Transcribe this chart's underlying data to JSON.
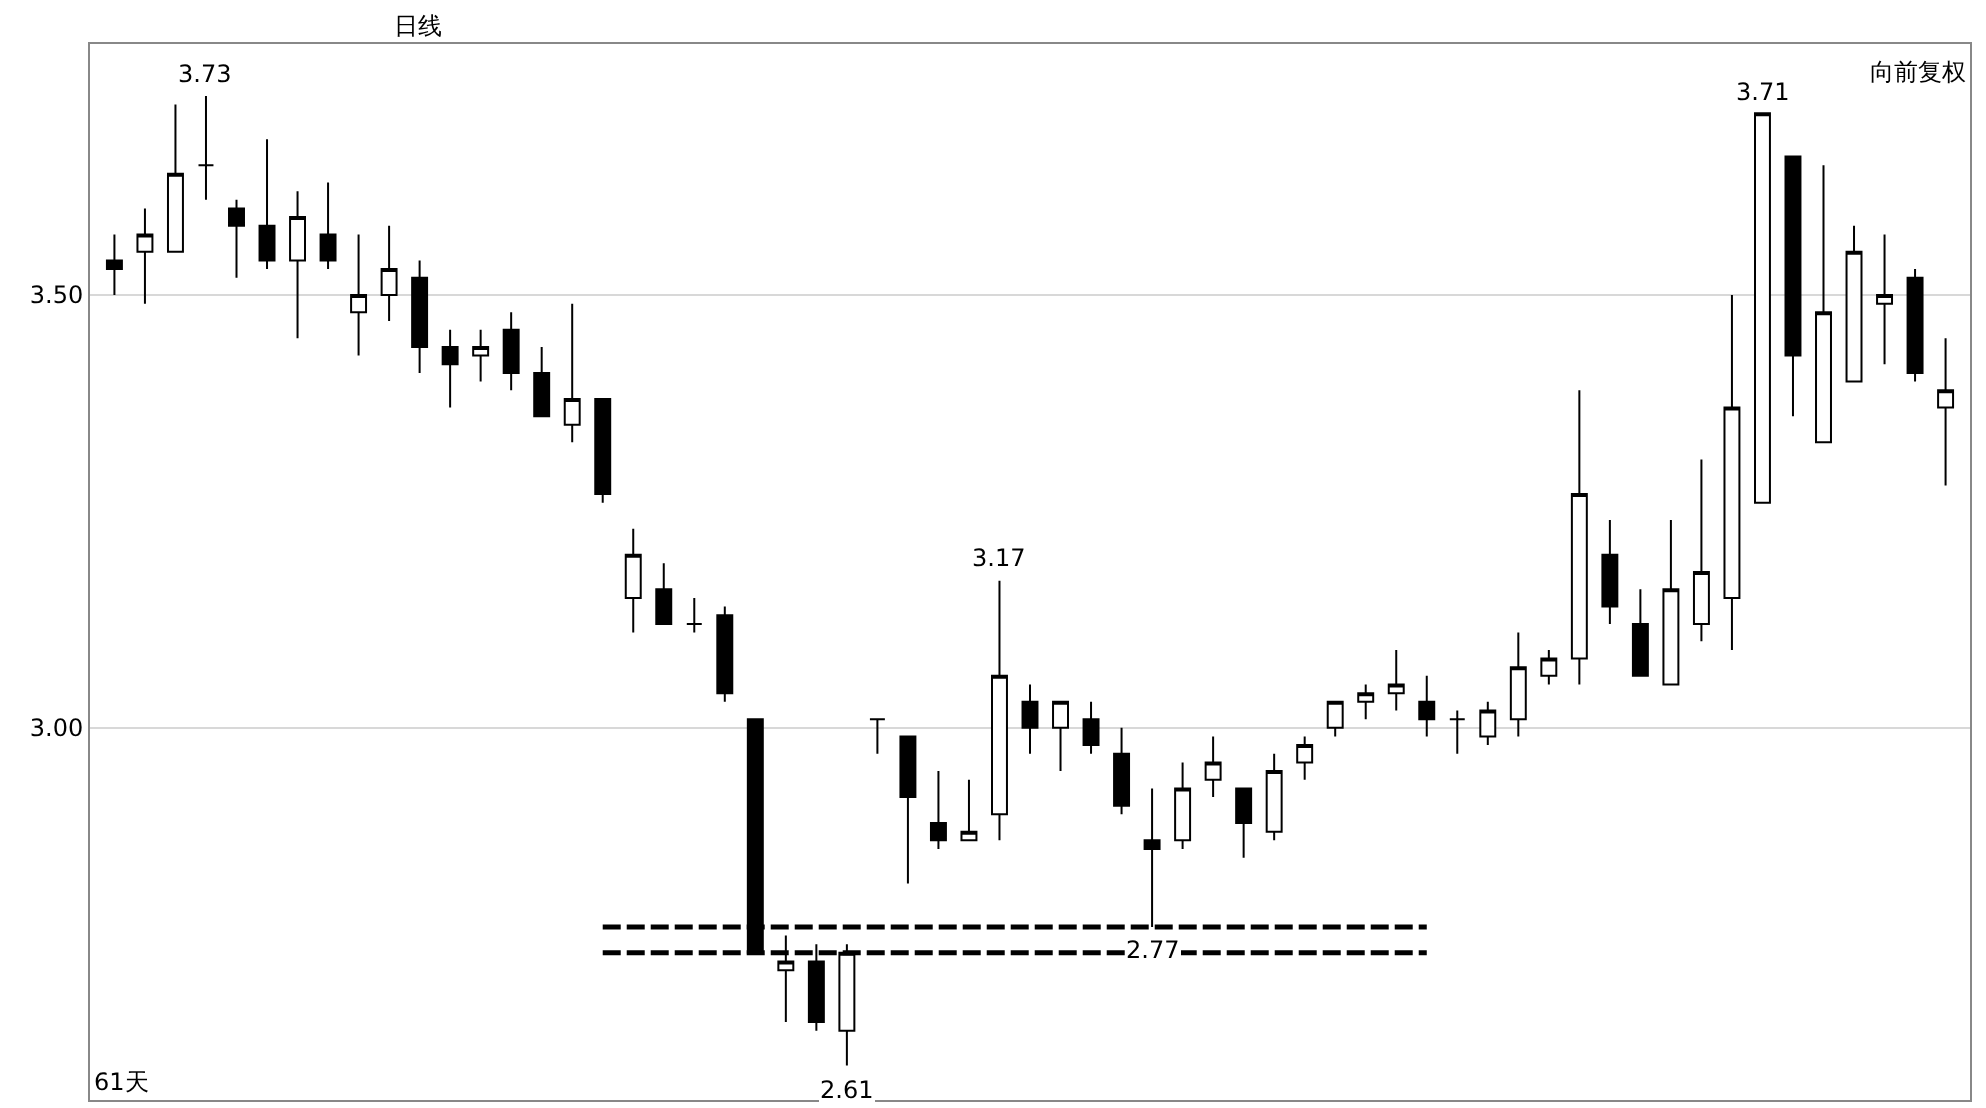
{
  "chart_data": {
    "type": "candlestick",
    "categories": [
      null,
      null,
      null,
      null,
      null,
      null,
      null,
      null,
      null,
      null,
      null,
      null,
      null,
      null,
      null,
      null,
      null,
      null,
      null,
      null,
      null,
      null,
      null,
      null,
      null,
      null,
      null,
      null,
      null,
      null,
      null,
      null,
      null,
      null,
      null,
      null,
      null,
      null,
      null,
      null,
      null,
      null,
      null,
      null,
      null,
      null,
      null,
      null,
      null,
      null,
      null,
      null,
      null,
      null,
      null,
      null,
      null,
      null,
      null,
      null,
      null
    ],
    "ohlc": [
      [
        3.54,
        3.57,
        3.5,
        3.53
      ],
      [
        3.55,
        3.6,
        3.49,
        3.57
      ],
      [
        3.55,
        3.72,
        3.55,
        3.64
      ],
      [
        3.65,
        3.73,
        3.61,
        3.65
      ],
      [
        3.6,
        3.61,
        3.52,
        3.58
      ],
      [
        3.58,
        3.68,
        3.53,
        3.54
      ],
      [
        3.54,
        3.62,
        3.45,
        3.59
      ],
      [
        3.57,
        3.63,
        3.53,
        3.54
      ],
      [
        3.48,
        3.57,
        3.43,
        3.5
      ],
      [
        3.5,
        3.58,
        3.47,
        3.53
      ],
      [
        3.52,
        3.54,
        3.41,
        3.44
      ],
      [
        3.44,
        3.46,
        3.37,
        3.42
      ],
      [
        3.43,
        3.46,
        3.4,
        3.44
      ],
      [
        3.46,
        3.48,
        3.39,
        3.41
      ],
      [
        3.41,
        3.44,
        3.36,
        3.36
      ],
      [
        3.35,
        3.49,
        3.33,
        3.38
      ],
      [
        3.38,
        3.38,
        3.26,
        3.27
      ],
      [
        3.15,
        3.23,
        3.11,
        3.2
      ],
      [
        3.16,
        3.19,
        3.12,
        3.12
      ],
      [
        3.12,
        3.15,
        3.11,
        3.12
      ],
      [
        3.13,
        3.14,
        3.03,
        3.04
      ],
      [
        3.01,
        3.01,
        2.74,
        2.74
      ],
      [
        2.72,
        2.76,
        2.66,
        2.73
      ],
      [
        2.73,
        2.75,
        2.65,
        2.66
      ],
      [
        2.65,
        2.75,
        2.61,
        2.74
      ],
      [
        3.01,
        3.01,
        2.97,
        3.01
      ],
      [
        2.99,
        2.99,
        2.82,
        2.92
      ],
      [
        2.89,
        2.95,
        2.86,
        2.87
      ],
      [
        2.87,
        2.94,
        2.87,
        2.88
      ],
      [
        2.9,
        3.17,
        2.87,
        3.06
      ],
      [
        3.03,
        3.05,
        2.97,
        3.0
      ],
      [
        3.0,
        3.03,
        2.95,
        3.03
      ],
      [
        3.01,
        3.03,
        2.97,
        2.98
      ],
      [
        2.97,
        3.0,
        2.9,
        2.91
      ],
      [
        2.87,
        2.93,
        2.77,
        2.86
      ],
      [
        2.87,
        2.96,
        2.86,
        2.93
      ],
      [
        2.94,
        2.99,
        2.92,
        2.96
      ],
      [
        2.93,
        2.93,
        2.85,
        2.89
      ],
      [
        2.88,
        2.97,
        2.87,
        2.95
      ],
      [
        2.96,
        2.99,
        2.94,
        2.98
      ],
      [
        3.0,
        3.03,
        2.99,
        3.03
      ],
      [
        3.03,
        3.05,
        3.01,
        3.04
      ],
      [
        3.04,
        3.09,
        3.02,
        3.05
      ],
      [
        3.03,
        3.06,
        2.99,
        3.01
      ],
      [
        3.01,
        3.02,
        2.97,
        3.01
      ],
      [
        2.99,
        3.03,
        2.98,
        3.02
      ],
      [
        3.01,
        3.11,
        2.99,
        3.07
      ],
      [
        3.06,
        3.09,
        3.05,
        3.08
      ],
      [
        3.08,
        3.39,
        3.05,
        3.27
      ],
      [
        3.2,
        3.24,
        3.12,
        3.14
      ],
      [
        3.12,
        3.16,
        3.06,
        3.06
      ],
      [
        3.05,
        3.24,
        3.05,
        3.16
      ],
      [
        3.12,
        3.31,
        3.1,
        3.18
      ],
      [
        3.15,
        3.5,
        3.09,
        3.37
      ],
      [
        3.26,
        3.71,
        3.26,
        3.71
      ],
      [
        3.66,
        3.66,
        3.36,
        3.43
      ],
      [
        3.33,
        3.65,
        3.33,
        3.48
      ],
      [
        3.4,
        3.58,
        3.4,
        3.55
      ],
      [
        3.49,
        3.57,
        3.42,
        3.5
      ],
      [
        3.52,
        3.53,
        3.4,
        3.41
      ],
      [
        3.37,
        3.45,
        3.28,
        3.39
      ]
    ],
    "color": "#000000",
    "series": [
      {
        "type": "line",
        "color": "#000000",
        "line_style": "dashed",
        "values": [
          null,
          null,
          null,
          null,
          null,
          null,
          null,
          null,
          null,
          null,
          null,
          null,
          null,
          null,
          null,
          null,
          2.77,
          2.77,
          2.77,
          2.77,
          2.77,
          2.77,
          2.77,
          2.77,
          2.77,
          2.77,
          2.77,
          2.77,
          2.77,
          2.77,
          2.77,
          2.77,
          2.77,
          2.77,
          2.77,
          2.77,
          2.77,
          2.77,
          2.77,
          2.77,
          2.77,
          2.77,
          2.77,
          2.77,
          null,
          null,
          null,
          null,
          null,
          null,
          null,
          null,
          null,
          null,
          null,
          null,
          null,
          null,
          null,
          null,
          null
        ]
      },
      {
        "type": "line",
        "color": "#000000",
        "line_style": "dashed",
        "values": [
          null,
          null,
          null,
          null,
          null,
          null,
          null,
          null,
          null,
          null,
          null,
          null,
          null,
          null,
          null,
          null,
          2.74,
          2.74,
          2.74,
          2.74,
          2.74,
          2.74,
          2.74,
          2.74,
          2.74,
          2.74,
          2.74,
          2.74,
          2.74,
          2.74,
          2.74,
          2.74,
          2.74,
          2.74,
          2.74,
          2.74,
          2.74,
          2.74,
          2.74,
          2.74,
          2.74,
          2.74,
          2.74,
          2.74,
          null,
          null,
          null,
          null,
          null,
          null,
          null,
          null,
          null,
          null,
          null,
          null,
          null,
          null,
          null,
          null,
          null
        ]
      }
    ],
    "ylim": [
      2.57,
      3.79
    ],
    "yticks": [
      {
        "value": 3.0,
        "label": "3.00"
      },
      {
        "value": 3.5,
        "label": "3.50"
      }
    ],
    "grid": "y",
    "tick_labels": "y",
    "annotations": [
      {
        "text": "3.73",
        "y": 3.73
      },
      {
        "text": "3.71",
        "y": 3.71
      },
      {
        "text": "3.17",
        "y": 3.17
      },
      {
        "text": "2.61",
        "y": 2.61
      },
      {
        "text": "2.77",
        "y": 2.77
      },
      "日线",
      "向前复权",
      "61天"
    ]
  }
}
